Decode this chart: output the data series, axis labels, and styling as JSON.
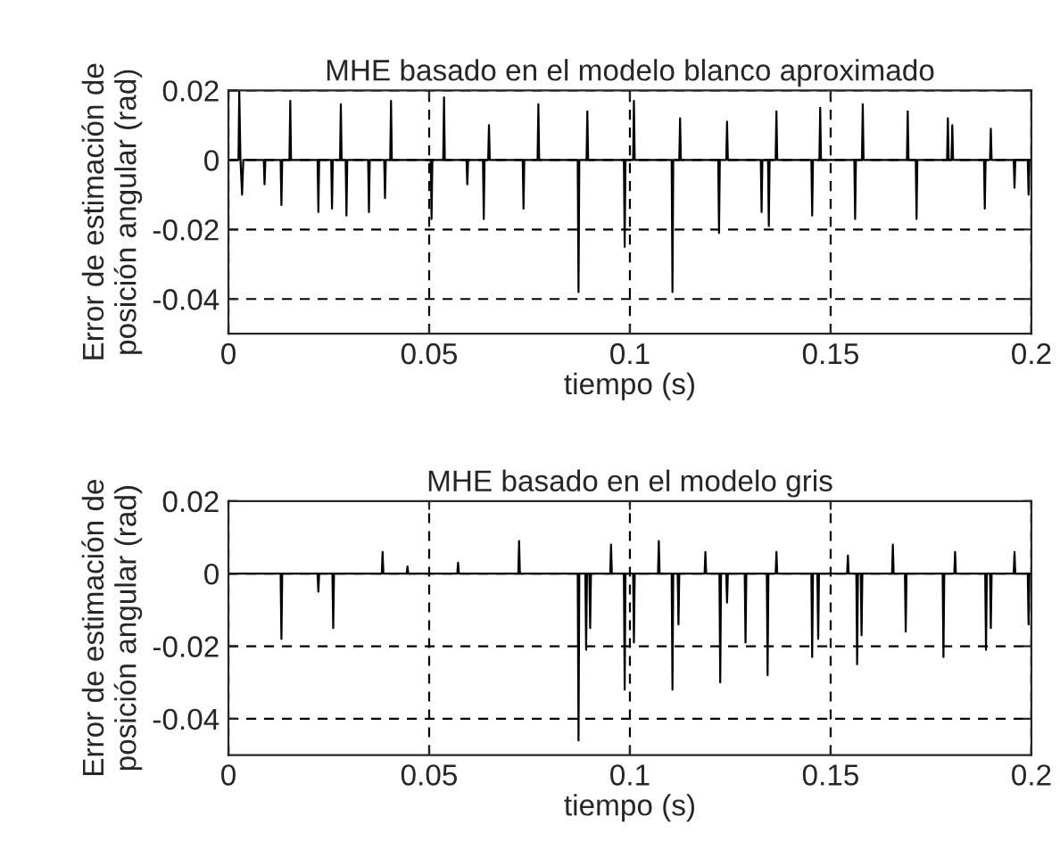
{
  "chart_data": [
    {
      "type": "line",
      "title": "MHE basado en el modelo blanco aproximado",
      "xlabel": "tiempo (s)",
      "ylabel": "Error de estimación de\nposición angular (rad)",
      "xlim": [
        0,
        0.2
      ],
      "ylim": [
        -0.05,
        0.02
      ],
      "xticks": [
        0,
        0.05,
        0.1,
        0.15,
        0.2
      ],
      "yticks": [
        0.02,
        0,
        -0.02,
        -0.04
      ],
      "grid": true,
      "line_style": "solid",
      "marker": "none",
      "series": [
        {
          "color": "#000000",
          "x": [
            0,
            0.0025,
            0.0027,
            0.003,
            0.0034,
            0.0037,
            0.0088,
            0.009,
            0.0092,
            0.013,
            0.0132,
            0.0134,
            0.0152,
            0.0154,
            0.0156,
            0.0222,
            0.0224,
            0.0226,
            0.0256,
            0.0258,
            0.026,
            0.0278,
            0.028,
            0.0282,
            0.0292,
            0.0294,
            0.0296,
            0.0348,
            0.035,
            0.0352,
            0.0388,
            0.039,
            0.0392,
            0.0403,
            0.0405,
            0.0407,
            0.0504,
            0.0506,
            0.0508,
            0.0535,
            0.0537,
            0.0539,
            0.0593,
            0.0595,
            0.0597,
            0.0634,
            0.0636,
            0.0638,
            0.0647,
            0.0649,
            0.0651,
            0.0733,
            0.0735,
            0.0737,
            0.077,
            0.0772,
            0.0774,
            0.087,
            0.0872,
            0.0874,
            0.0892,
            0.0894,
            0.0896,
            0.0985,
            0.0987,
            0.0989,
            0.1008,
            0.101,
            0.1012,
            0.1104,
            0.1106,
            0.1108,
            0.1123,
            0.1125,
            0.1127,
            0.122,
            0.1222,
            0.1224,
            0.124,
            0.1242,
            0.1244,
            0.1326,
            0.1328,
            0.133,
            0.1344,
            0.1346,
            0.1348,
            0.1363,
            0.1365,
            0.1367,
            0.1452,
            0.1454,
            0.1456,
            0.1472,
            0.1474,
            0.1476,
            0.1559,
            0.1561,
            0.1563,
            0.1578,
            0.158,
            0.1582,
            0.169,
            0.1692,
            0.1694,
            0.1712,
            0.1714,
            0.1716,
            0.179,
            0.1792,
            0.1794,
            0.1801,
            0.1803,
            0.1805,
            0.1882,
            0.1884,
            0.1886,
            0.1897,
            0.1899,
            0.1901,
            0.1956,
            0.1958,
            0.196,
            0.1991,
            0.1993,
            0.1995,
            0.2
          ],
          "values": [
            0,
            0,
            0.02,
            0,
            -0.01,
            0,
            0,
            -0.007,
            0,
            0,
            -0.013,
            0,
            0,
            0.017,
            0,
            0,
            -0.015,
            0,
            0,
            -0.014,
            0,
            0,
            0.016,
            0,
            0,
            -0.016,
            0,
            0,
            -0.015,
            0,
            0,
            -0.011,
            0,
            0,
            0.017,
            0,
            0,
            -0.017,
            0,
            0,
            0.018,
            0,
            0,
            -0.007,
            0,
            0,
            -0.017,
            0,
            0,
            0.01,
            0,
            0,
            -0.014,
            0,
            0,
            0.016,
            0,
            0,
            -0.038,
            0,
            0,
            0.014,
            0,
            0,
            -0.025,
            0,
            0,
            0.017,
            0,
            0,
            -0.038,
            0,
            0,
            0.012,
            0,
            0,
            -0.021,
            0,
            0,
            0.011,
            0,
            0,
            -0.015,
            0,
            0,
            -0.019,
            0,
            0,
            0.014,
            0,
            0,
            -0.016,
            0,
            0,
            0.015,
            0,
            0,
            -0.017,
            0,
            0,
            0.016,
            0,
            0,
            0.014,
            0,
            0,
            -0.017,
            0,
            0,
            0.012,
            0,
            0,
            0.01,
            0,
            0,
            -0.014,
            0,
            0,
            0.009,
            0,
            0,
            -0.008,
            0,
            0,
            -0.01,
            0,
            0
          ]
        }
      ]
    },
    {
      "type": "line",
      "title": "MHE basado en el modelo gris",
      "xlabel": "tiempo (s)",
      "ylabel": "Error de estimación de\nposición angular (rad)",
      "xlim": [
        0,
        0.2
      ],
      "ylim": [
        -0.05,
        0.02
      ],
      "xticks": [
        0,
        0.05,
        0.1,
        0.15,
        0.2
      ],
      "yticks": [
        0.02,
        0,
        -0.02,
        -0.04
      ],
      "grid": true,
      "line_style": "solid",
      "marker": "none",
      "series": [
        {
          "color": "#000000",
          "x": [
            0,
            0.013,
            0.0132,
            0.0134,
            0.0222,
            0.0224,
            0.0226,
            0.0259,
            0.0261,
            0.0263,
            0.0382,
            0.0384,
            0.0386,
            0.0444,
            0.0446,
            0.0448,
            0.057,
            0.0572,
            0.0574,
            0.0722,
            0.0724,
            0.0726,
            0.087,
            0.0872,
            0.0874,
            0.0889,
            0.0891,
            0.0893,
            0.0899,
            0.0901,
            0.0903,
            0.0951,
            0.0953,
            0.0955,
            0.0985,
            0.0987,
            0.0989,
            0.1008,
            0.101,
            0.1012,
            0.107,
            0.1072,
            0.1074,
            0.1104,
            0.1106,
            0.1108,
            0.1119,
            0.1121,
            0.1123,
            0.1186,
            0.1188,
            0.119,
            0.1223,
            0.1225,
            0.1227,
            0.124,
            0.1242,
            0.1244,
            0.1286,
            0.1288,
            0.129,
            0.1341,
            0.1343,
            0.1345,
            0.1363,
            0.1365,
            0.1367,
            0.1452,
            0.1454,
            0.1456,
            0.1467,
            0.1469,
            0.1471,
            0.1541,
            0.1543,
            0.1545,
            0.1564,
            0.1566,
            0.1568,
            0.1575,
            0.1577,
            0.1579,
            0.1653,
            0.1655,
            0.1657,
            0.1685,
            0.1687,
            0.1689,
            0.1779,
            0.1781,
            0.1783,
            0.1808,
            0.181,
            0.1812,
            0.1885,
            0.1887,
            0.1889,
            0.1897,
            0.1899,
            0.1901,
            0.1956,
            0.1958,
            0.196,
            0.1991,
            0.1993,
            0.1995,
            0.2
          ],
          "values": [
            0,
            0,
            -0.018,
            0,
            0,
            -0.005,
            0,
            0,
            -0.015,
            0,
            0,
            0.006,
            0,
            0,
            0.002,
            0,
            0,
            0.003,
            0,
            0,
            0.009,
            0,
            0,
            -0.046,
            0,
            0,
            -0.021,
            0,
            0,
            -0.015,
            0,
            0,
            0.008,
            0,
            0,
            -0.032,
            0,
            0,
            -0.019,
            0,
            0,
            0.009,
            0,
            0,
            -0.032,
            0,
            0,
            -0.014,
            0,
            0,
            0.006,
            0,
            0,
            -0.03,
            0,
            0,
            -0.008,
            0,
            0,
            -0.019,
            0,
            0,
            -0.028,
            0,
            0,
            0.006,
            0,
            0,
            -0.023,
            0,
            0,
            -0.018,
            0,
            0,
            0.005,
            0,
            0,
            -0.025,
            0,
            0,
            -0.017,
            0,
            0,
            0.008,
            0,
            0,
            -0.016,
            0,
            0,
            -0.023,
            0,
            0,
            0.006,
            0,
            0,
            -0.021,
            0,
            0,
            -0.015,
            0,
            0,
            0.006,
            0,
            0,
            -0.014,
            0,
            0
          ]
        }
      ]
    }
  ]
}
